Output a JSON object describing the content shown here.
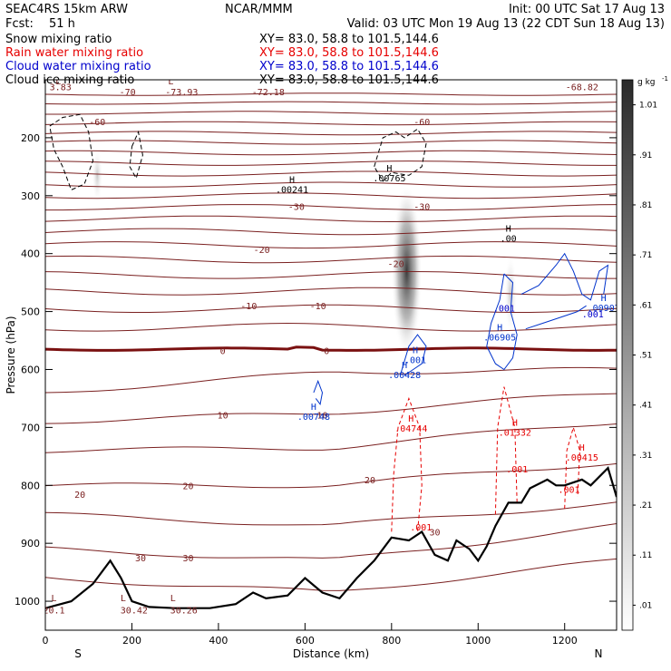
{
  "header": {
    "model": "SEAC4RS 15km ARW",
    "org": "NCAR/MMM",
    "init": "Init: 00 UTC Sat 17 Aug 13",
    "fcst_label": "Fcst:",
    "fcst_value": "51 h",
    "valid": "Valid: 03 UTC Mon 19 Aug 13 (22 CDT Sun 18 Aug 13)"
  },
  "layers": [
    {
      "name": "Snow mixing ratio",
      "xy": "XY=  83.0, 58.8 to 101.5,144.6",
      "color": "#000000"
    },
    {
      "name": "Rain water mixing ratio",
      "xy": "XY=  83.0, 58.8 to 101.5,144.6",
      "color": "#e60000"
    },
    {
      "name": "Cloud water mixing ratio",
      "xy": "XY=  83.0, 58.8 to 101.5,144.6",
      "color": "#0000cc"
    },
    {
      "name": "Cloud ice mixing ratio",
      "xy": "XY=  83.0, 58.8 to 101.5,144.6",
      "color": "#000000"
    }
  ],
  "chart_data": {
    "type": "contour",
    "xlabel": "Distance (km)",
    "ylabel": "Pressure (hPa)",
    "x_ticks": [
      0,
      200,
      400,
      600,
      800,
      1000,
      1200
    ],
    "y_ticks": [
      200,
      300,
      400,
      500,
      600,
      700,
      800,
      900,
      1000
    ],
    "xlim": [
      0,
      1320
    ],
    "ylim_hpa": [
      1050,
      100
    ],
    "end_labels": {
      "left": "S",
      "right": "N"
    },
    "colorbar": {
      "unit": "g kg",
      "unit_exp": "-1",
      "levels": [
        ".01",
        ".11",
        ".21",
        ".31",
        ".41",
        ".51",
        ".61",
        ".71",
        ".81",
        ".91",
        "1.01"
      ]
    },
    "terrain_surface_hpa": [
      [
        0,
        1012
      ],
      [
        20,
        1008
      ],
      [
        60,
        1000
      ],
      [
        110,
        970
      ],
      [
        150,
        930
      ],
      [
        175,
        960
      ],
      [
        200,
        1000
      ],
      [
        240,
        1010
      ],
      [
        300,
        1012
      ],
      [
        380,
        1012
      ],
      [
        440,
        1005
      ],
      [
        480,
        985
      ],
      [
        510,
        995
      ],
      [
        560,
        990
      ],
      [
        600,
        960
      ],
      [
        640,
        985
      ],
      [
        680,
        995
      ],
      [
        720,
        960
      ],
      [
        760,
        930
      ],
      [
        800,
        890
      ],
      [
        840,
        895
      ],
      [
        870,
        880
      ],
      [
        900,
        920
      ],
      [
        930,
        930
      ],
      [
        950,
        895
      ],
      [
        980,
        910
      ],
      [
        1000,
        930
      ],
      [
        1020,
        905
      ],
      [
        1040,
        870
      ],
      [
        1070,
        830
      ],
      [
        1100,
        830
      ],
      [
        1120,
        805
      ],
      [
        1160,
        790
      ],
      [
        1180,
        800
      ],
      [
        1200,
        800
      ],
      [
        1240,
        790
      ],
      [
        1260,
        800
      ],
      [
        1300,
        770
      ],
      [
        1320,
        820
      ]
    ],
    "temperature_contours_c": [
      -70,
      -60,
      -30,
      -20,
      -10,
      0,
      10,
      20,
      30
    ],
    "temperature_labels": [
      {
        "text": "-70",
        "x": 190,
        "p": 120
      },
      {
        "text": "-73.93",
        "x": 315,
        "p": 120
      },
      {
        "text": "-72.18",
        "x": 515,
        "p": 120
      },
      {
        "text": "-68.82",
        "x": 1240,
        "p": 112
      },
      {
        "text": "3.83",
        "x": 35,
        "p": 112
      },
      {
        "text": "-60",
        "x": 120,
        "p": 172
      },
      {
        "text": "-60",
        "x": 870,
        "p": 172
      },
      {
        "text": "-30",
        "x": 580,
        "p": 318
      },
      {
        "text": "-30",
        "x": 870,
        "p": 318
      },
      {
        "text": "-20",
        "x": 500,
        "p": 393
      },
      {
        "text": "-20",
        "x": 810,
        "p": 417
      },
      {
        "text": "-10",
        "x": 470,
        "p": 490
      },
      {
        "text": "-10",
        "x": 630,
        "p": 490
      },
      {
        "text": "0",
        "x": 410,
        "p": 567
      },
      {
        "text": "0",
        "x": 650,
        "p": 567
      },
      {
        "text": "10",
        "x": 410,
        "p": 678
      },
      {
        "text": "10",
        "x": 640,
        "p": 678
      },
      {
        "text": "20",
        "x": 80,
        "p": 815
      },
      {
        "text": "20",
        "x": 330,
        "p": 800
      },
      {
        "text": "20",
        "x": 750,
        "p": 790
      },
      {
        "text": "30",
        "x": 900,
        "p": 880
      },
      {
        "text": "30",
        "x": 220,
        "p": 925
      },
      {
        "text": "30",
        "x": 330,
        "p": 925
      },
      {
        "text": "20.1",
        "x": 20,
        "p": 1015
      },
      {
        "text": "30.42",
        "x": 205,
        "p": 1015
      },
      {
        "text": "30.26",
        "x": 320,
        "p": 1015
      }
    ],
    "extrema_labels": [
      {
        "mark": "L",
        "x": 30,
        "p": 108,
        "value": ""
      },
      {
        "mark": "L",
        "x": 290,
        "p": 108,
        "value": ""
      },
      {
        "mark": "H",
        "x": 570,
        "p": 278,
        "value": ".00241"
      },
      {
        "mark": "H",
        "x": 795,
        "p": 258,
        "value": ".00765"
      },
      {
        "mark": "H",
        "x": 1070,
        "p": 362,
        "value": ".00"
      },
      {
        "mark": "H",
        "x": 1290,
        "p": 482,
        "value": ".00907"
      },
      {
        "mark": "H",
        "x": 1050,
        "p": 533,
        "value": ".06905"
      },
      {
        "mark": "H",
        "x": 855,
        "p": 572,
        "value": ".001"
      },
      {
        "mark": "H",
        "x": 830,
        "p": 598,
        "value": ".00428"
      },
      {
        "mark": "H",
        "x": 620,
        "p": 670,
        "value": ".00748"
      },
      {
        "mark": "H",
        "x": 845,
        "p": 690,
        "value": ".04744"
      },
      {
        "mark": "H",
        "x": 1085,
        "p": 697,
        "value": ".01332"
      },
      {
        "mark": "H",
        "x": 1240,
        "p": 740,
        "value": ".00415"
      },
      {
        "mark": "L",
        "x": 20,
        "p": 1000,
        "value": ""
      },
      {
        "mark": "L",
        "x": 180,
        "p": 1000,
        "value": ""
      },
      {
        "mark": "L",
        "x": 295,
        "p": 1000,
        "value": ""
      }
    ],
    "extra_labels": [
      {
        "text": ".001",
        "x": 1060,
        "p": 500,
        "color": "#0000cc"
      },
      {
        "text": ".001",
        "x": 1265,
        "p": 510,
        "color": "#0000cc"
      },
      {
        "text": ".001",
        "x": 1090,
        "p": 778,
        "color": "#e60000"
      },
      {
        "text": ".001",
        "x": 1210,
        "p": 813,
        "color": "#e60000"
      },
      {
        "text": ".001",
        "x": 868,
        "p": 878,
        "color": "#e60000"
      }
    ]
  }
}
